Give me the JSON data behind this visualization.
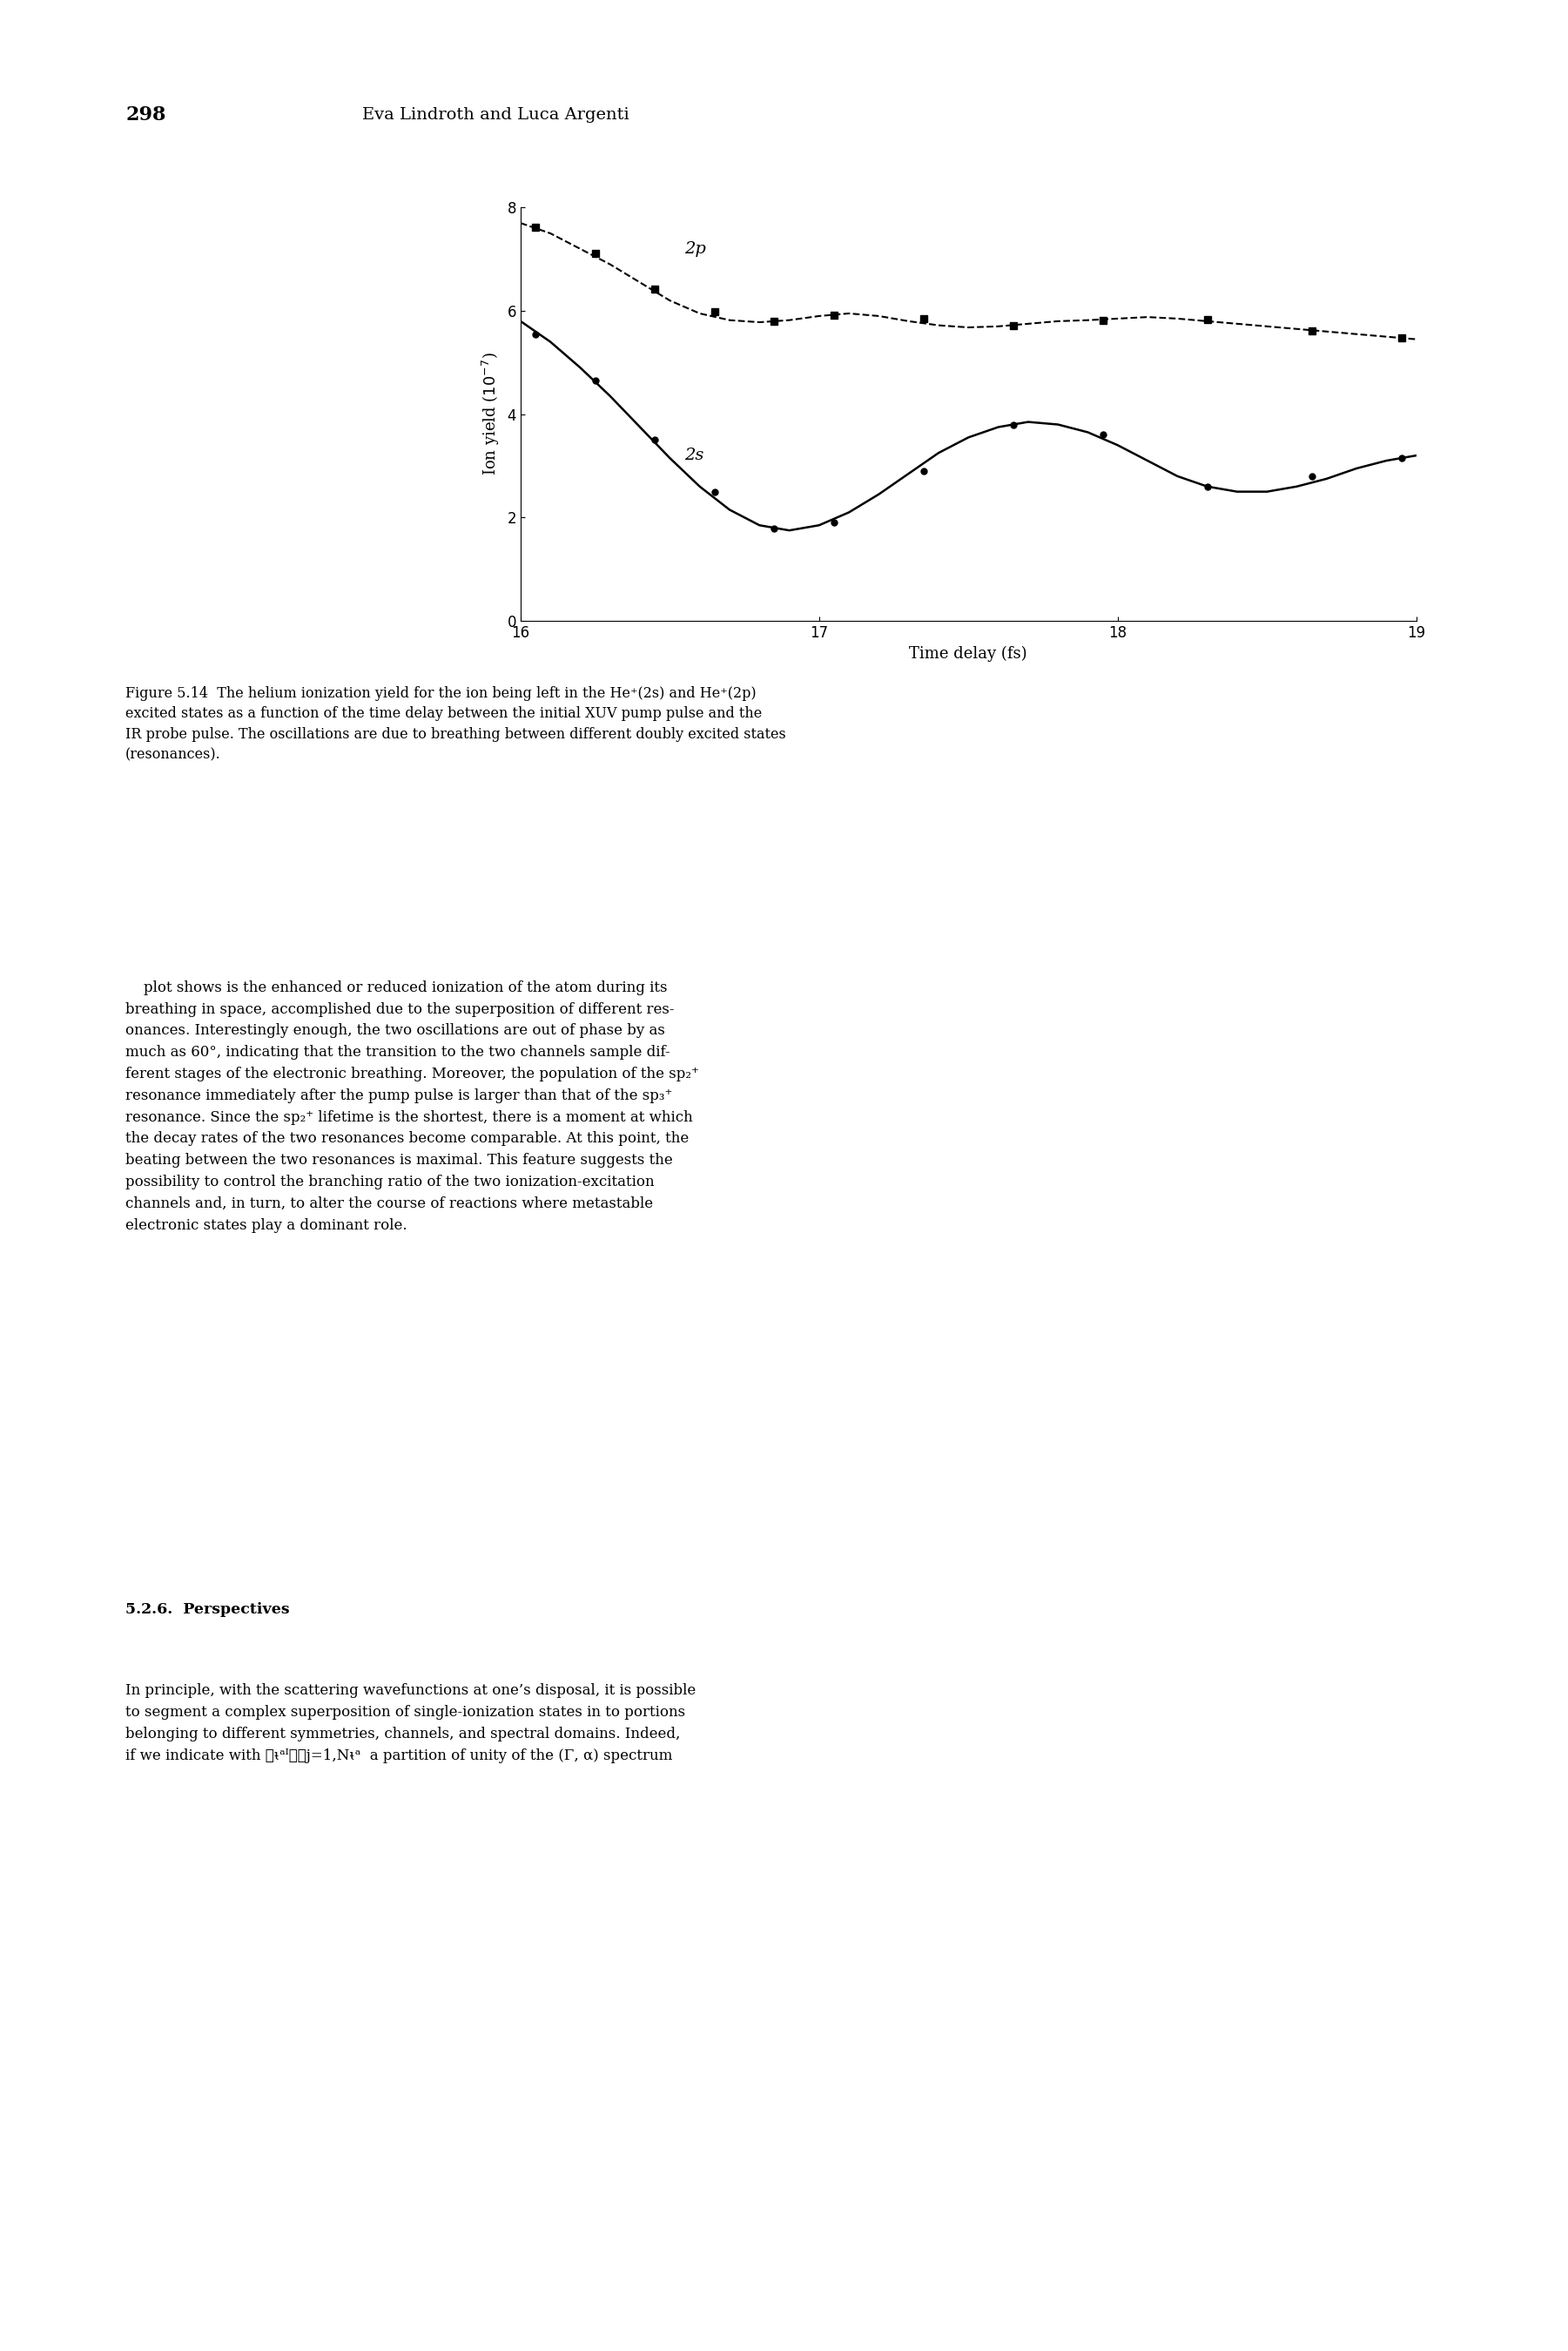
{
  "header_page": "298",
  "header_author": "Eva Lindroth and Luca Argenti",
  "xlabel": "Time delay (fs)",
  "ylabel": "Ion yield (10⁻⁷)",
  "xlim": [
    16,
    19
  ],
  "ylim": [
    0,
    8
  ],
  "xticks": [
    16,
    17,
    18,
    19
  ],
  "yticks": [
    0,
    2,
    4,
    6,
    8
  ],
  "label_2p": "2p",
  "label_2s": "2s",
  "x_2p": [
    16.0,
    16.1,
    16.2,
    16.3,
    16.4,
    16.5,
    16.6,
    16.7,
    16.8,
    16.9,
    17.0,
    17.1,
    17.2,
    17.3,
    17.4,
    17.5,
    17.6,
    17.7,
    17.8,
    17.9,
    18.0,
    18.1,
    18.2,
    18.3,
    18.4,
    18.5,
    18.6,
    18.7,
    18.8,
    18.9,
    19.0
  ],
  "y_2p": [
    7.7,
    7.5,
    7.2,
    6.9,
    6.55,
    6.2,
    5.95,
    5.82,
    5.78,
    5.82,
    5.9,
    5.95,
    5.9,
    5.8,
    5.72,
    5.68,
    5.7,
    5.75,
    5.8,
    5.82,
    5.85,
    5.88,
    5.85,
    5.8,
    5.75,
    5.7,
    5.65,
    5.6,
    5.55,
    5.5,
    5.45
  ],
  "x_2s": [
    16.0,
    16.1,
    16.2,
    16.3,
    16.4,
    16.5,
    16.6,
    16.7,
    16.8,
    16.9,
    17.0,
    17.1,
    17.2,
    17.3,
    17.4,
    17.5,
    17.6,
    17.7,
    17.8,
    17.9,
    18.0,
    18.1,
    18.2,
    18.3,
    18.4,
    18.5,
    18.6,
    18.7,
    18.8,
    18.9,
    19.0
  ],
  "y_2s": [
    5.8,
    5.4,
    4.9,
    4.35,
    3.75,
    3.15,
    2.6,
    2.15,
    1.85,
    1.75,
    1.85,
    2.1,
    2.45,
    2.85,
    3.25,
    3.55,
    3.75,
    3.85,
    3.8,
    3.65,
    3.4,
    3.1,
    2.8,
    2.6,
    2.5,
    2.5,
    2.6,
    2.75,
    2.95,
    3.1,
    3.2
  ],
  "marker_2p_x": [
    16.05,
    16.25,
    16.45,
    16.65,
    16.85,
    17.05,
    17.35,
    17.65,
    17.95,
    18.3,
    18.65,
    18.95
  ],
  "marker_2p_y": [
    7.62,
    7.12,
    6.42,
    5.98,
    5.79,
    5.91,
    5.84,
    5.72,
    5.81,
    5.83,
    5.62,
    5.47
  ],
  "marker_2s_x": [
    16.05,
    16.25,
    16.45,
    16.65,
    16.85,
    17.05,
    17.35,
    17.65,
    17.95,
    18.3,
    18.65,
    18.95
  ],
  "marker_2s_y": [
    5.55,
    4.65,
    3.5,
    2.5,
    1.78,
    1.9,
    2.9,
    3.8,
    3.6,
    2.6,
    2.8,
    3.15
  ],
  "figure_caption_bold": "Figure 5.14",
  "figure_caption_text": "  The helium ionization yield for the ion being left in the He⁺(2s) and He⁺(2p)\nexcited states as a function of the time delay between the initial XUV ",
  "figure_caption_pump": "pump",
  "figure_caption_text2": " pulse and the\nIR ",
  "figure_caption_probe": "probe",
  "figure_caption_text3": " pulse. The oscillations are due to ",
  "figure_caption_breathing": "breathing",
  "figure_caption_text4": " between different doubly excited states\n(resonances).",
  "body_text": "plot shows is the enhanced or reduced ionization of the atom during its\n",
  "body_italic1": "breathing",
  "background_color": "#ffffff"
}
